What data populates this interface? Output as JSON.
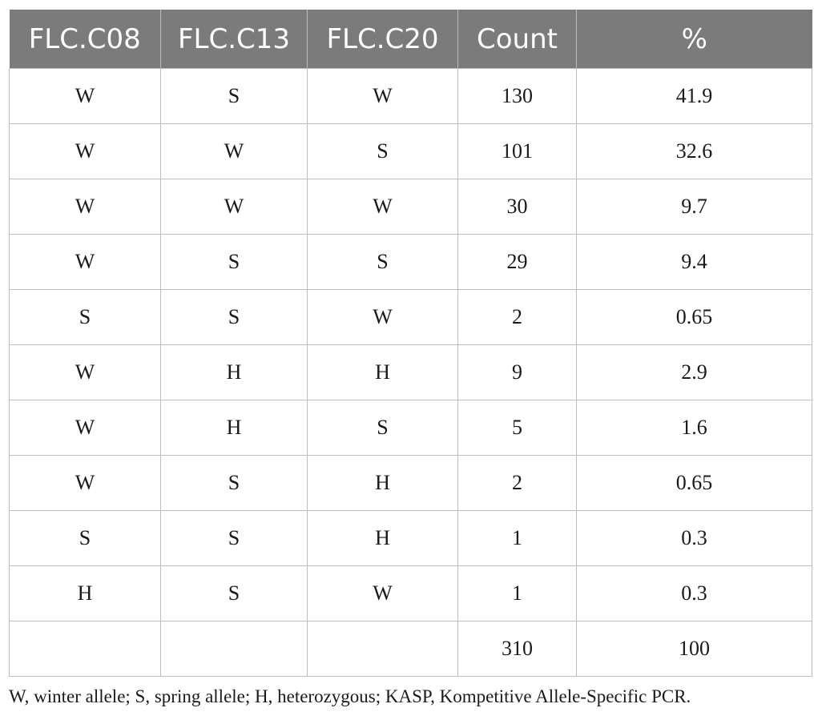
{
  "table": {
    "headers": [
      "FLC.C08",
      "FLC.C13",
      "FLC.C20",
      "Count",
      "%"
    ],
    "rows": [
      [
        "W",
        "S",
        "W",
        "130",
        "41.9"
      ],
      [
        "W",
        "W",
        "S",
        "101",
        "32.6"
      ],
      [
        "W",
        "W",
        "W",
        "30",
        "9.7"
      ],
      [
        "W",
        "S",
        "S",
        "29",
        "9.4"
      ],
      [
        "S",
        "S",
        "W",
        "2",
        "0.65"
      ],
      [
        "W",
        "H",
        "H",
        "9",
        "2.9"
      ],
      [
        "W",
        "H",
        "S",
        "5",
        "1.6"
      ],
      [
        "W",
        "S",
        "H",
        "2",
        "0.65"
      ],
      [
        "S",
        "S",
        "H",
        "1",
        "0.3"
      ],
      [
        "H",
        "S",
        "W",
        "1",
        "0.3"
      ],
      [
        "",
        "",
        "",
        "310",
        "100"
      ]
    ]
  },
  "footnote": "W, winter allele; S, spring allele; H, heterozygous; KASP, Kompetitive Allele-Specific PCR.",
  "colors": {
    "header_bg": "#7b7b7b",
    "header_text": "#ffffff",
    "border": "#bdbdbd"
  }
}
